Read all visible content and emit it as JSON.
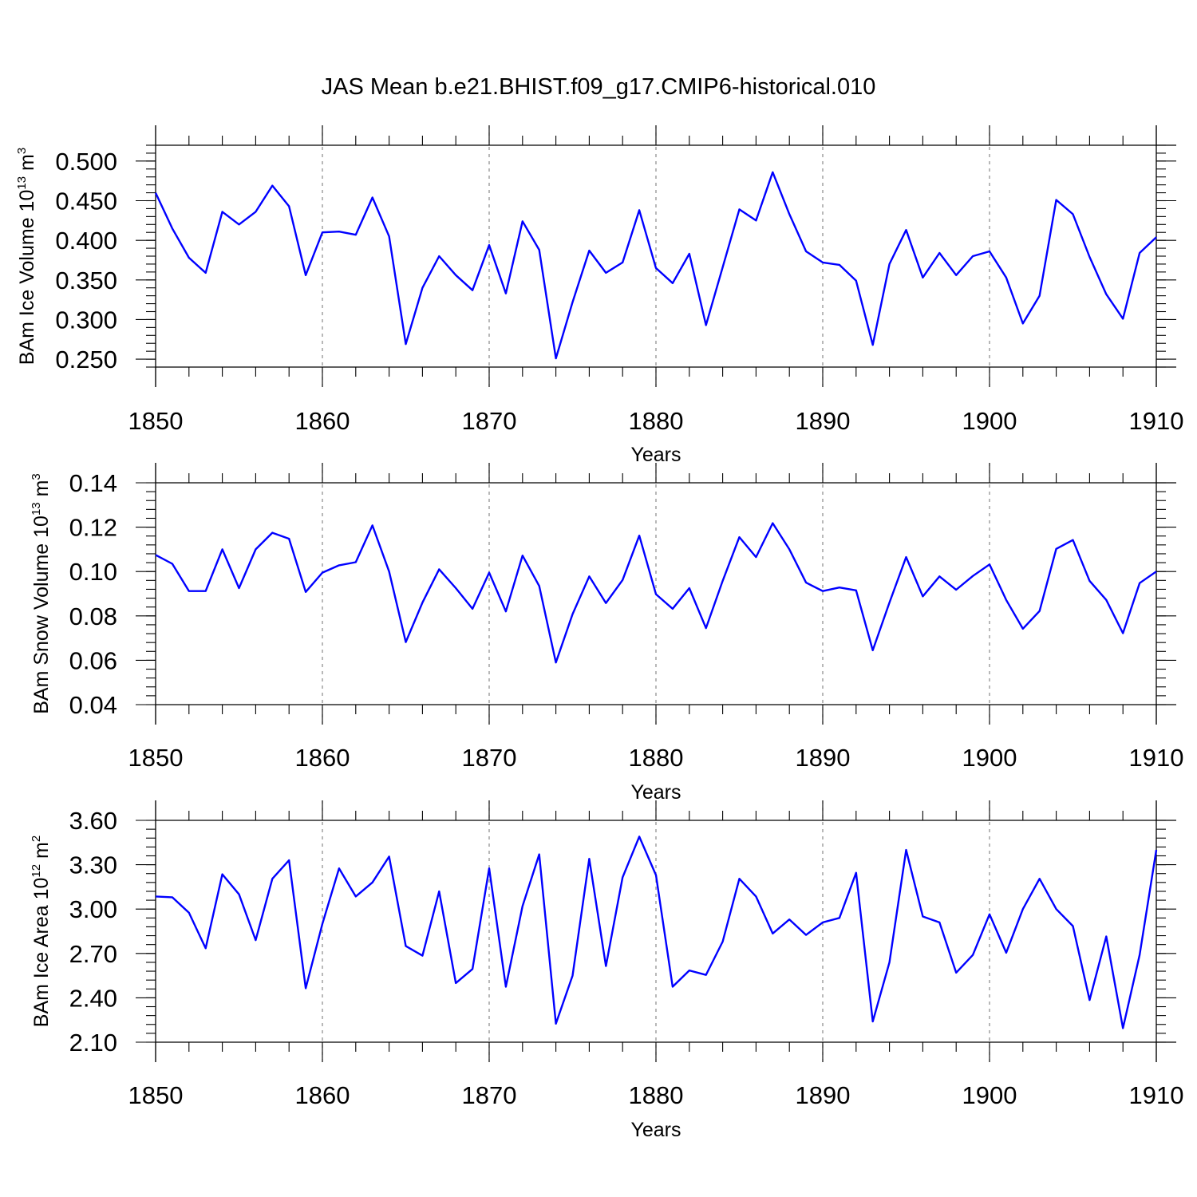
{
  "title": "JAS Mean b.e21.BHIST.f09_g17.CMIP6-historical.010",
  "line_color": "#0000ff",
  "chart_data": [
    {
      "type": "line",
      "id": "ice-volume",
      "ylabel_main": "BAm Ice Volume 10",
      "ylabel_exp": "13",
      "ylabel_unit": " m",
      "ylabel_unit_exp": "3",
      "xlabel": "Years",
      "xlim": [
        1850,
        1910
      ],
      "ylim": [
        0.24,
        0.52
      ],
      "yticks": [
        "0.250",
        "0.300",
        "0.350",
        "0.400",
        "0.450",
        "0.500"
      ],
      "yminor_step": 0.01,
      "xticks": [
        "1850",
        "1860",
        "1870",
        "1880",
        "1890",
        "1900",
        "1910"
      ],
      "grid_x": [
        1860,
        1870,
        1880,
        1890,
        1900
      ],
      "x_start": 1850,
      "values": [
        0.46,
        0.415,
        0.378,
        0.359,
        0.436,
        0.42,
        0.436,
        0.469,
        0.443,
        0.356,
        0.41,
        0.411,
        0.407,
        0.454,
        0.405,
        0.269,
        0.34,
        0.38,
        0.356,
        0.337,
        0.394,
        0.333,
        0.424,
        0.388,
        0.251,
        0.322,
        0.387,
        0.359,
        0.372,
        0.438,
        0.365,
        0.346,
        0.383,
        0.293,
        0.366,
        0.439,
        0.425,
        0.486,
        0.433,
        0.386,
        0.372,
        0.369,
        0.349,
        0.268,
        0.37,
        0.413,
        0.353,
        0.384,
        0.356,
        0.38,
        0.386,
        0.353,
        0.295,
        0.33,
        0.451,
        0.433,
        0.379,
        0.332,
        0.301,
        0.384,
        0.404
      ]
    },
    {
      "type": "line",
      "id": "snow-volume",
      "ylabel_main": "BAm Snow Volume 10",
      "ylabel_exp": "13",
      "ylabel_unit": " m",
      "ylabel_unit_exp": "3",
      "xlabel": "Years",
      "xlim": [
        1850,
        1910
      ],
      "ylim": [
        0.04,
        0.14
      ],
      "yticks": [
        "0.04",
        "0.06",
        "0.08",
        "0.10",
        "0.12",
        "0.14"
      ],
      "yminor_step": 0.004,
      "xticks": [
        "1850",
        "1860",
        "1870",
        "1880",
        "1890",
        "1900",
        "1910"
      ],
      "grid_x": [
        1860,
        1870,
        1880,
        1890,
        1900
      ],
      "x_start": 1850,
      "values": [
        0.1075,
        0.1035,
        0.0912,
        0.0912,
        0.11,
        0.0925,
        0.11,
        0.1175,
        0.1148,
        0.0908,
        0.0995,
        0.1028,
        0.1042,
        0.1208,
        0.1,
        0.0682,
        0.086,
        0.101,
        0.0925,
        0.0832,
        0.0995,
        0.082,
        0.1072,
        0.0935,
        0.059,
        0.0808,
        0.0978,
        0.0858,
        0.0962,
        0.1162,
        0.0898,
        0.0832,
        0.0925,
        0.0745,
        0.0958,
        0.1155,
        0.1065,
        0.1218,
        0.11,
        0.095,
        0.0912,
        0.0928,
        0.0915,
        0.0645,
        0.086,
        0.1065,
        0.0888,
        0.0978,
        0.0918,
        0.098,
        0.1032,
        0.0872,
        0.0742,
        0.0822,
        0.1102,
        0.1142,
        0.0958,
        0.0872,
        0.0722,
        0.0948,
        0.1
      ]
    },
    {
      "type": "line",
      "id": "ice-area",
      "ylabel_main": "BAm Ice Area 10",
      "ylabel_exp": "12",
      "ylabel_unit": " m",
      "ylabel_unit_exp": "2",
      "xlabel": "Years",
      "xlim": [
        1850,
        1910
      ],
      "ylim": [
        2.1,
        3.6
      ],
      "yticks": [
        "2.10",
        "2.40",
        "2.70",
        "3.00",
        "3.30",
        "3.60"
      ],
      "yminor_step": 0.06,
      "xticks": [
        "1850",
        "1860",
        "1870",
        "1880",
        "1890",
        "1900",
        "1910"
      ],
      "grid_x": [
        1860,
        1870,
        1880,
        1890,
        1900
      ],
      "x_start": 1850,
      "values": [
        3.085,
        3.08,
        2.975,
        2.735,
        3.235,
        3.1,
        2.79,
        3.205,
        3.33,
        2.465,
        2.9,
        3.275,
        3.085,
        3.18,
        3.355,
        2.75,
        2.685,
        3.12,
        2.5,
        2.595,
        3.275,
        2.475,
        3.02,
        3.37,
        2.225,
        2.55,
        3.34,
        2.615,
        3.215,
        3.49,
        3.23,
        2.475,
        2.585,
        2.555,
        2.78,
        3.205,
        3.085,
        2.835,
        2.93,
        2.825,
        2.91,
        2.94,
        3.245,
        2.24,
        2.64,
        3.4,
        2.95,
        2.91,
        2.57,
        2.69,
        2.965,
        2.705,
        3.0,
        3.205,
        3.0,
        2.885,
        2.385,
        2.815,
        2.195,
        2.69,
        3.4
      ]
    }
  ]
}
